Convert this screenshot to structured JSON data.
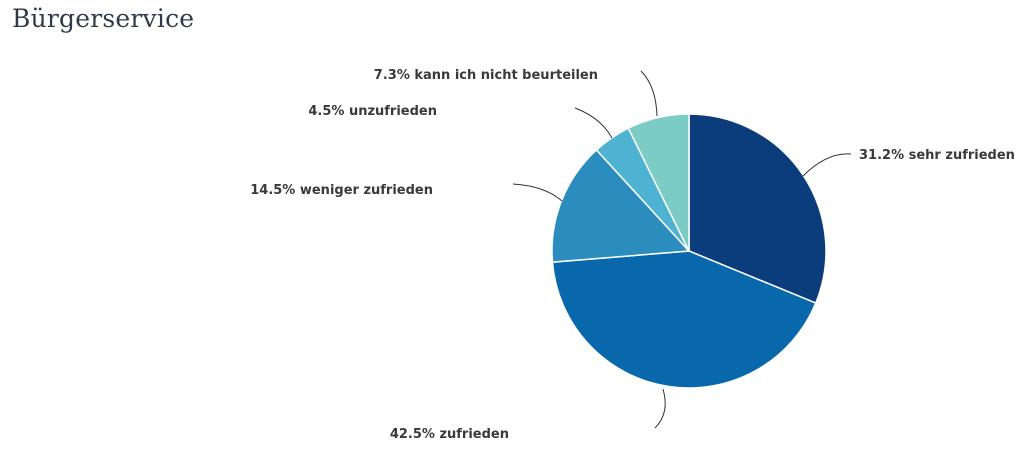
{
  "page": {
    "title": "Bürgerservice"
  },
  "chart_data": {
    "type": "pie",
    "title": "Bürgerservice",
    "start_angle_deg": 0,
    "direction": "clockwise",
    "slices": [
      {
        "label": "sehr zufrieden",
        "value": 31.2,
        "display": "31.2% sehr zufrieden",
        "color": "#0b3d7c"
      },
      {
        "label": "zufrieden",
        "value": 42.5,
        "display": "42.5% zufrieden",
        "color": "#0868ab"
      },
      {
        "label": "weniger zufrieden",
        "value": 14.5,
        "display": "14.5% weniger zufrieden",
        "color": "#2b8cbe"
      },
      {
        "label": "unzufrieden",
        "value": 4.5,
        "display": "4.5% unzufrieden",
        "color": "#4eb3d3"
      },
      {
        "label": "kann ich nicht beurteilen",
        "value": 7.3,
        "display": "7.3% kann ich nicht beurteilen",
        "color": "#7bccc4"
      }
    ]
  }
}
